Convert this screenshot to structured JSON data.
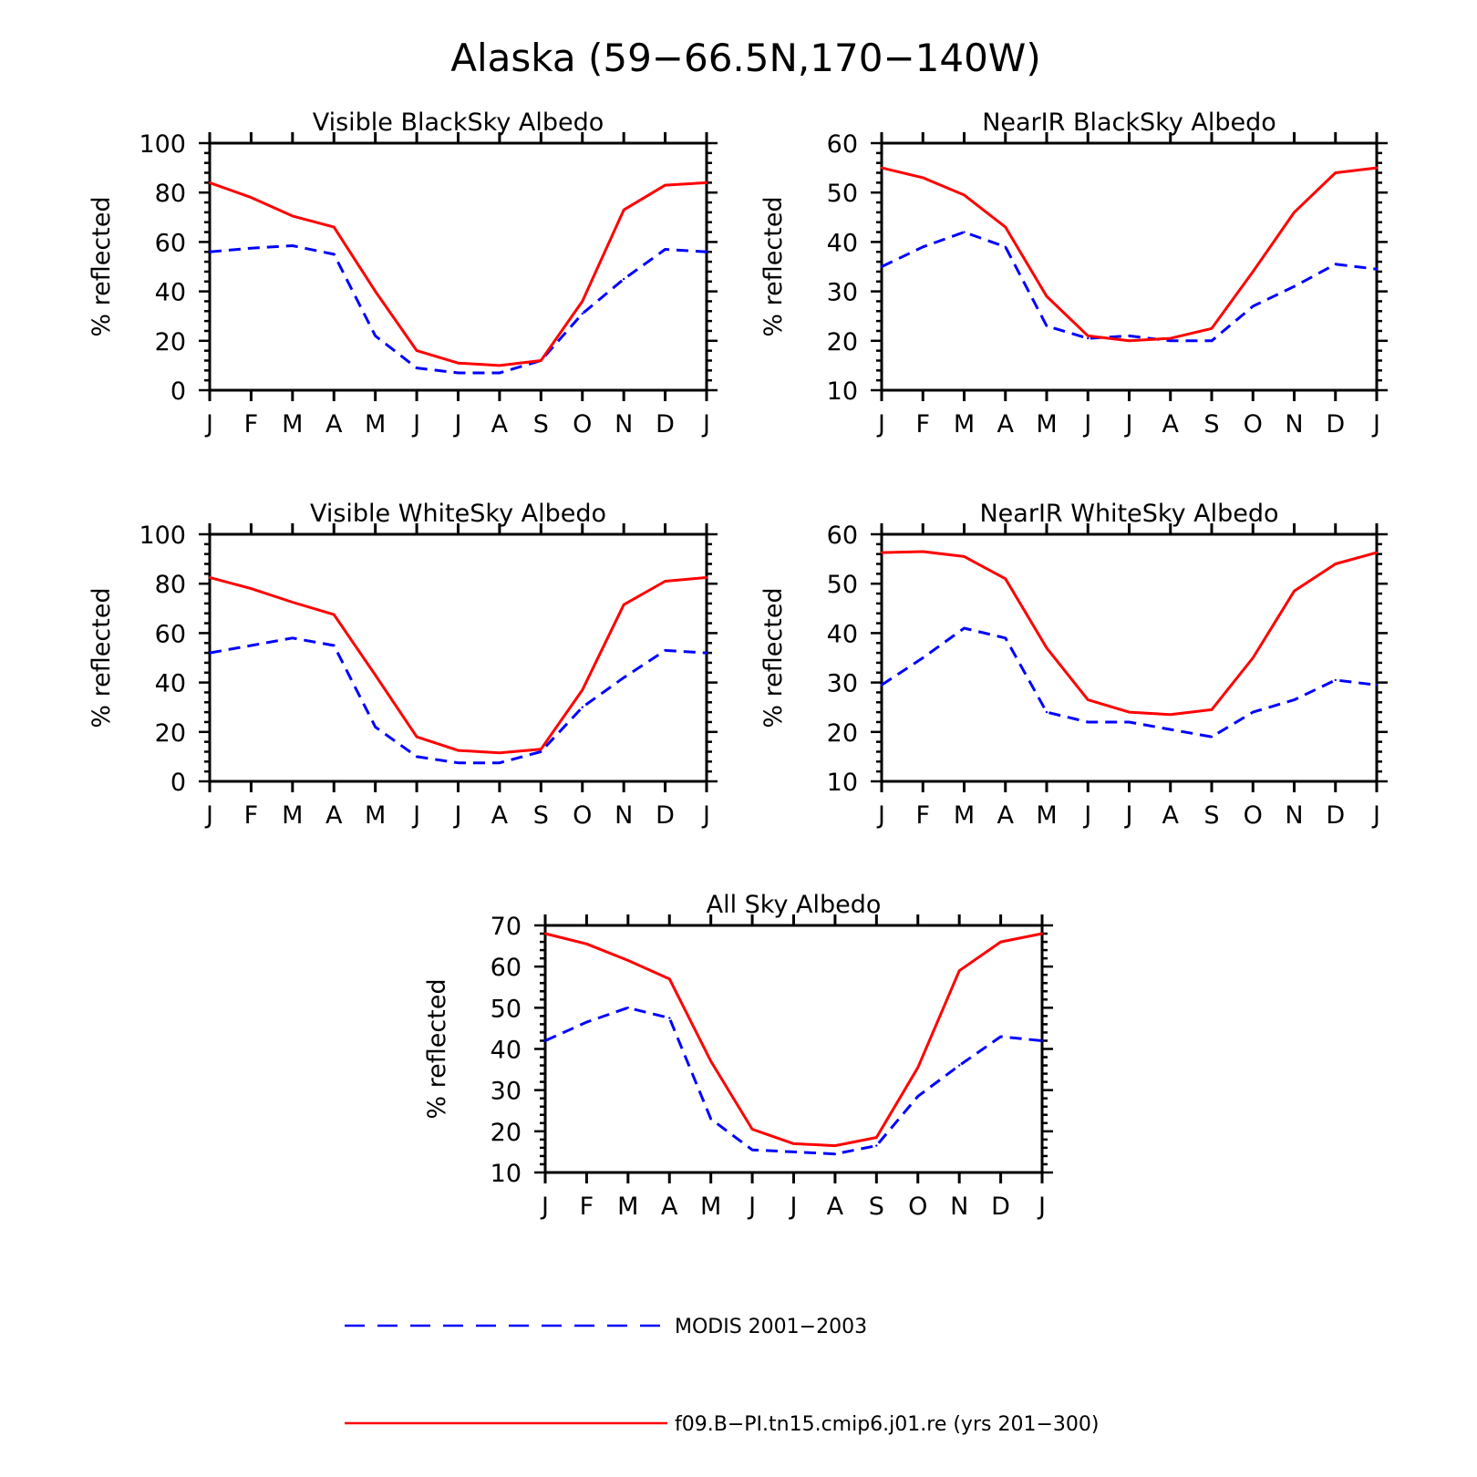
{
  "figure": {
    "title": "Alaska (59−66.5N,170−140W)",
    "months": [
      "J",
      "F",
      "M",
      "A",
      "M",
      "J",
      "J",
      "A",
      "S",
      "O",
      "N",
      "D",
      "J"
    ]
  },
  "legend": {
    "items": [
      {
        "label": "MODIS 2001−2003",
        "color": "#0000ff",
        "style": "dashed"
      },
      {
        "label": "f09.B−PI.tn15.cmip6.j01.re (yrs 201−300)",
        "color": "#ff0000",
        "style": "solid"
      }
    ]
  },
  "chart_data": [
    {
      "type": "line",
      "title": "Visible BlackSky Albedo",
      "ylabel": "% reflected",
      "ylim": [
        0,
        100
      ],
      "yticks": [
        0,
        20,
        40,
        60,
        80,
        100
      ],
      "categories": [
        "J",
        "F",
        "M",
        "A",
        "M",
        "J",
        "J",
        "A",
        "S",
        "O",
        "N",
        "D",
        "J"
      ],
      "series": [
        {
          "name": "MODIS 2001−2003",
          "color": "#0000ff",
          "style": "dashed",
          "values": [
            56,
            57.5,
            58.5,
            55,
            22,
            9,
            7,
            7,
            12,
            31,
            45,
            57,
            56
          ]
        },
        {
          "name": "f09.B−PI.tn15.cmip6.j01.re (yrs 201−300)",
          "color": "#ff0000",
          "style": "solid",
          "values": [
            84,
            78,
            70.5,
            66,
            40,
            16,
            11,
            10,
            12,
            36,
            73,
            83,
            84
          ]
        }
      ]
    },
    {
      "type": "line",
      "title": "NearIR BlackSky Albedo",
      "ylabel": "% reflected",
      "ylim": [
        10,
        60
      ],
      "yticks": [
        10,
        20,
        30,
        40,
        50,
        60
      ],
      "categories": [
        "J",
        "F",
        "M",
        "A",
        "M",
        "J",
        "J",
        "A",
        "S",
        "O",
        "N",
        "D",
        "J"
      ],
      "series": [
        {
          "name": "MODIS 2001−2003",
          "color": "#0000ff",
          "style": "dashed",
          "values": [
            35,
            39,
            42,
            39,
            23,
            20.5,
            21,
            20,
            20,
            27,
            31,
            35.5,
            34.5
          ]
        },
        {
          "name": "f09.B−PI.tn15.cmip6.j01.re (yrs 201−300)",
          "color": "#ff0000",
          "style": "solid",
          "values": [
            55,
            53,
            49.5,
            43,
            29,
            21,
            20,
            20.5,
            22.5,
            34,
            46,
            54,
            55
          ]
        }
      ]
    },
    {
      "type": "line",
      "title": "Visible WhiteSky Albedo",
      "ylabel": "% reflected",
      "ylim": [
        0,
        100
      ],
      "yticks": [
        0,
        20,
        40,
        60,
        80,
        100
      ],
      "categories": [
        "J",
        "F",
        "M",
        "A",
        "M",
        "J",
        "J",
        "A",
        "S",
        "O",
        "N",
        "D",
        "J"
      ],
      "series": [
        {
          "name": "MODIS 2001−2003",
          "color": "#0000ff",
          "style": "dashed",
          "values": [
            52,
            55,
            58,
            55,
            22,
            10,
            7.5,
            7.5,
            12,
            30,
            42,
            53,
            52
          ]
        },
        {
          "name": "f09.B−PI.tn15.cmip6.j01.re (yrs 201−300)",
          "color": "#ff0000",
          "style": "solid",
          "values": [
            82.5,
            78,
            72.5,
            67.5,
            43,
            18,
            12.5,
            11.5,
            13,
            37,
            71.5,
            81,
            82.5
          ]
        }
      ]
    },
    {
      "type": "line",
      "title": "NearIR WhiteSky Albedo",
      "ylabel": "% reflected",
      "ylim": [
        10,
        60
      ],
      "yticks": [
        10,
        20,
        30,
        40,
        50,
        60
      ],
      "categories": [
        "J",
        "F",
        "M",
        "A",
        "M",
        "J",
        "J",
        "A",
        "S",
        "O",
        "N",
        "D",
        "J"
      ],
      "series": [
        {
          "name": "MODIS 2001−2003",
          "color": "#0000ff",
          "style": "dashed",
          "values": [
            29.5,
            35,
            41,
            39,
            24,
            22,
            22,
            20.5,
            19,
            24,
            26.5,
            30.5,
            29.5
          ]
        },
        {
          "name": "f09.B−PI.tn15.cmip6.j01.re (yrs 201−300)",
          "color": "#ff0000",
          "style": "solid",
          "values": [
            56.3,
            56.5,
            55.5,
            51,
            37,
            26.5,
            24,
            23.5,
            24.5,
            35,
            48.5,
            54,
            56.3
          ]
        }
      ]
    },
    {
      "type": "line",
      "title": "All Sky Albedo",
      "ylabel": "% reflected",
      "ylim": [
        10,
        70
      ],
      "yticks": [
        10,
        20,
        30,
        40,
        50,
        60,
        70
      ],
      "categories": [
        "J",
        "F",
        "M",
        "A",
        "M",
        "J",
        "J",
        "A",
        "S",
        "O",
        "N",
        "D",
        "J"
      ],
      "series": [
        {
          "name": "MODIS 2001−2003",
          "color": "#0000ff",
          "style": "dashed",
          "values": [
            42,
            46.5,
            50,
            47.5,
            23,
            15.5,
            15,
            14.5,
            16.5,
            28.5,
            36,
            43,
            42
          ]
        },
        {
          "name": "f09.B−PI.tn15.cmip6.j01.re (yrs 201−300)",
          "color": "#ff0000",
          "style": "solid",
          "values": [
            68,
            65.5,
            61.5,
            57,
            37,
            20.5,
            17,
            16.5,
            18.5,
            35.5,
            59,
            66,
            68
          ]
        }
      ]
    }
  ]
}
